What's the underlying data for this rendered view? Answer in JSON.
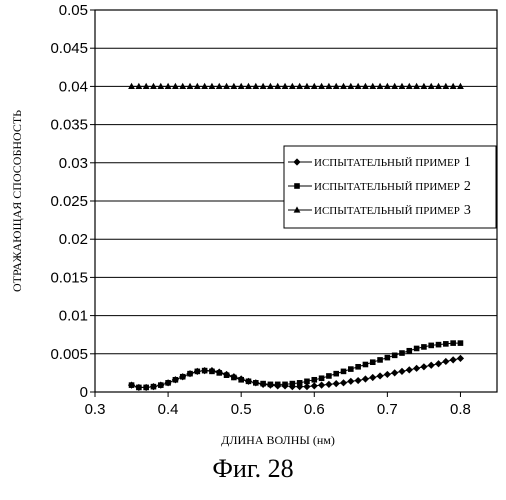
{
  "caption": "Фиг. 28",
  "chart_data": {
    "type": "line",
    "xlabel": "ДЛИНА ВОЛНЫ (нм)",
    "ylabel": "ОТРАЖАЮЩАЯ СПОСОБНОСТЬ",
    "xlim": [
      0.3,
      0.85
    ],
    "ylim": [
      0,
      0.05
    ],
    "xticks": [
      "0.3",
      "0.4",
      "0.5",
      "0.6",
      "0.7",
      "0.8"
    ],
    "yticks": [
      "0",
      "0.005",
      "0.01",
      "0.015",
      "0.02",
      "0.025",
      "0.03",
      "0.035",
      "0.04",
      "0.045",
      "0.05"
    ],
    "grid": true,
    "legend": "right",
    "series": [
      {
        "name": "ИСПЫТАТЕЛЬНЫЙ ПРИМЕР",
        "num": "1",
        "marker": "diamond",
        "x": [
          0.35,
          0.36,
          0.37,
          0.38,
          0.39,
          0.4,
          0.41,
          0.42,
          0.43,
          0.44,
          0.45,
          0.46,
          0.47,
          0.48,
          0.49,
          0.5,
          0.51,
          0.52,
          0.53,
          0.54,
          0.55,
          0.56,
          0.57,
          0.58,
          0.59,
          0.6,
          0.61,
          0.62,
          0.63,
          0.64,
          0.65,
          0.66,
          0.67,
          0.68,
          0.69,
          0.7,
          0.71,
          0.72,
          0.73,
          0.74,
          0.75,
          0.76,
          0.77,
          0.78,
          0.79,
          0.8
        ],
        "y": [
          0.0009,
          0.0006,
          0.0006,
          0.0007,
          0.0009,
          0.0012,
          0.0016,
          0.002,
          0.0024,
          0.0027,
          0.0028,
          0.0028,
          0.0026,
          0.0023,
          0.002,
          0.0017,
          0.0014,
          0.0012,
          0.001,
          0.0009,
          0.0008,
          0.0008,
          0.0007,
          0.0007,
          0.0007,
          0.0008,
          0.0009,
          0.001,
          0.0011,
          0.0012,
          0.0014,
          0.0015,
          0.0017,
          0.0019,
          0.0021,
          0.0023,
          0.0025,
          0.0027,
          0.0029,
          0.0031,
          0.0033,
          0.0035,
          0.0037,
          0.004,
          0.0042,
          0.0044
        ]
      },
      {
        "name": "ИСПЫТАТЕЛЬНЫЙ ПРИМЕР",
        "num": "2",
        "marker": "square",
        "x": [
          0.35,
          0.36,
          0.37,
          0.38,
          0.39,
          0.4,
          0.41,
          0.42,
          0.43,
          0.44,
          0.45,
          0.46,
          0.47,
          0.48,
          0.49,
          0.5,
          0.51,
          0.52,
          0.53,
          0.54,
          0.55,
          0.56,
          0.57,
          0.58,
          0.59,
          0.6,
          0.61,
          0.62,
          0.63,
          0.64,
          0.65,
          0.66,
          0.67,
          0.68,
          0.69,
          0.7,
          0.71,
          0.72,
          0.73,
          0.74,
          0.75,
          0.76,
          0.77,
          0.78,
          0.79,
          0.8
        ],
        "y": [
          0.0009,
          0.0006,
          0.0006,
          0.0007,
          0.0009,
          0.0012,
          0.0016,
          0.002,
          0.0024,
          0.0027,
          0.0028,
          0.0027,
          0.0025,
          0.0022,
          0.0019,
          0.0016,
          0.0014,
          0.0012,
          0.0011,
          0.001,
          0.001,
          0.001,
          0.0011,
          0.0012,
          0.0014,
          0.0016,
          0.0018,
          0.0021,
          0.0024,
          0.0027,
          0.003,
          0.0033,
          0.0036,
          0.0039,
          0.0042,
          0.0045,
          0.0048,
          0.0051,
          0.0054,
          0.0057,
          0.0059,
          0.0061,
          0.0062,
          0.0063,
          0.0064,
          0.0064
        ]
      },
      {
        "name": "ИСПЫТАТЕЛЬНЫЙ ПРИМЕР",
        "num": "3",
        "marker": "triangle",
        "x": [
          0.35,
          0.36,
          0.37,
          0.38,
          0.39,
          0.4,
          0.41,
          0.42,
          0.43,
          0.44,
          0.45,
          0.46,
          0.47,
          0.48,
          0.49,
          0.5,
          0.51,
          0.52,
          0.53,
          0.54,
          0.55,
          0.56,
          0.57,
          0.58,
          0.59,
          0.6,
          0.61,
          0.62,
          0.63,
          0.64,
          0.65,
          0.66,
          0.67,
          0.68,
          0.69,
          0.7,
          0.71,
          0.72,
          0.73,
          0.74,
          0.75,
          0.76,
          0.77,
          0.78,
          0.79,
          0.8
        ],
        "y": [
          0.04,
          0.04,
          0.04,
          0.04,
          0.04,
          0.04,
          0.04,
          0.04,
          0.04,
          0.04,
          0.04,
          0.04,
          0.04,
          0.04,
          0.04,
          0.04,
          0.04,
          0.04,
          0.04,
          0.04,
          0.04,
          0.04,
          0.04,
          0.04,
          0.04,
          0.04,
          0.04,
          0.04,
          0.04,
          0.04,
          0.04,
          0.04,
          0.04,
          0.04,
          0.04,
          0.04,
          0.04,
          0.04,
          0.04,
          0.04,
          0.04,
          0.04,
          0.04,
          0.04,
          0.04,
          0.04
        ]
      }
    ]
  }
}
